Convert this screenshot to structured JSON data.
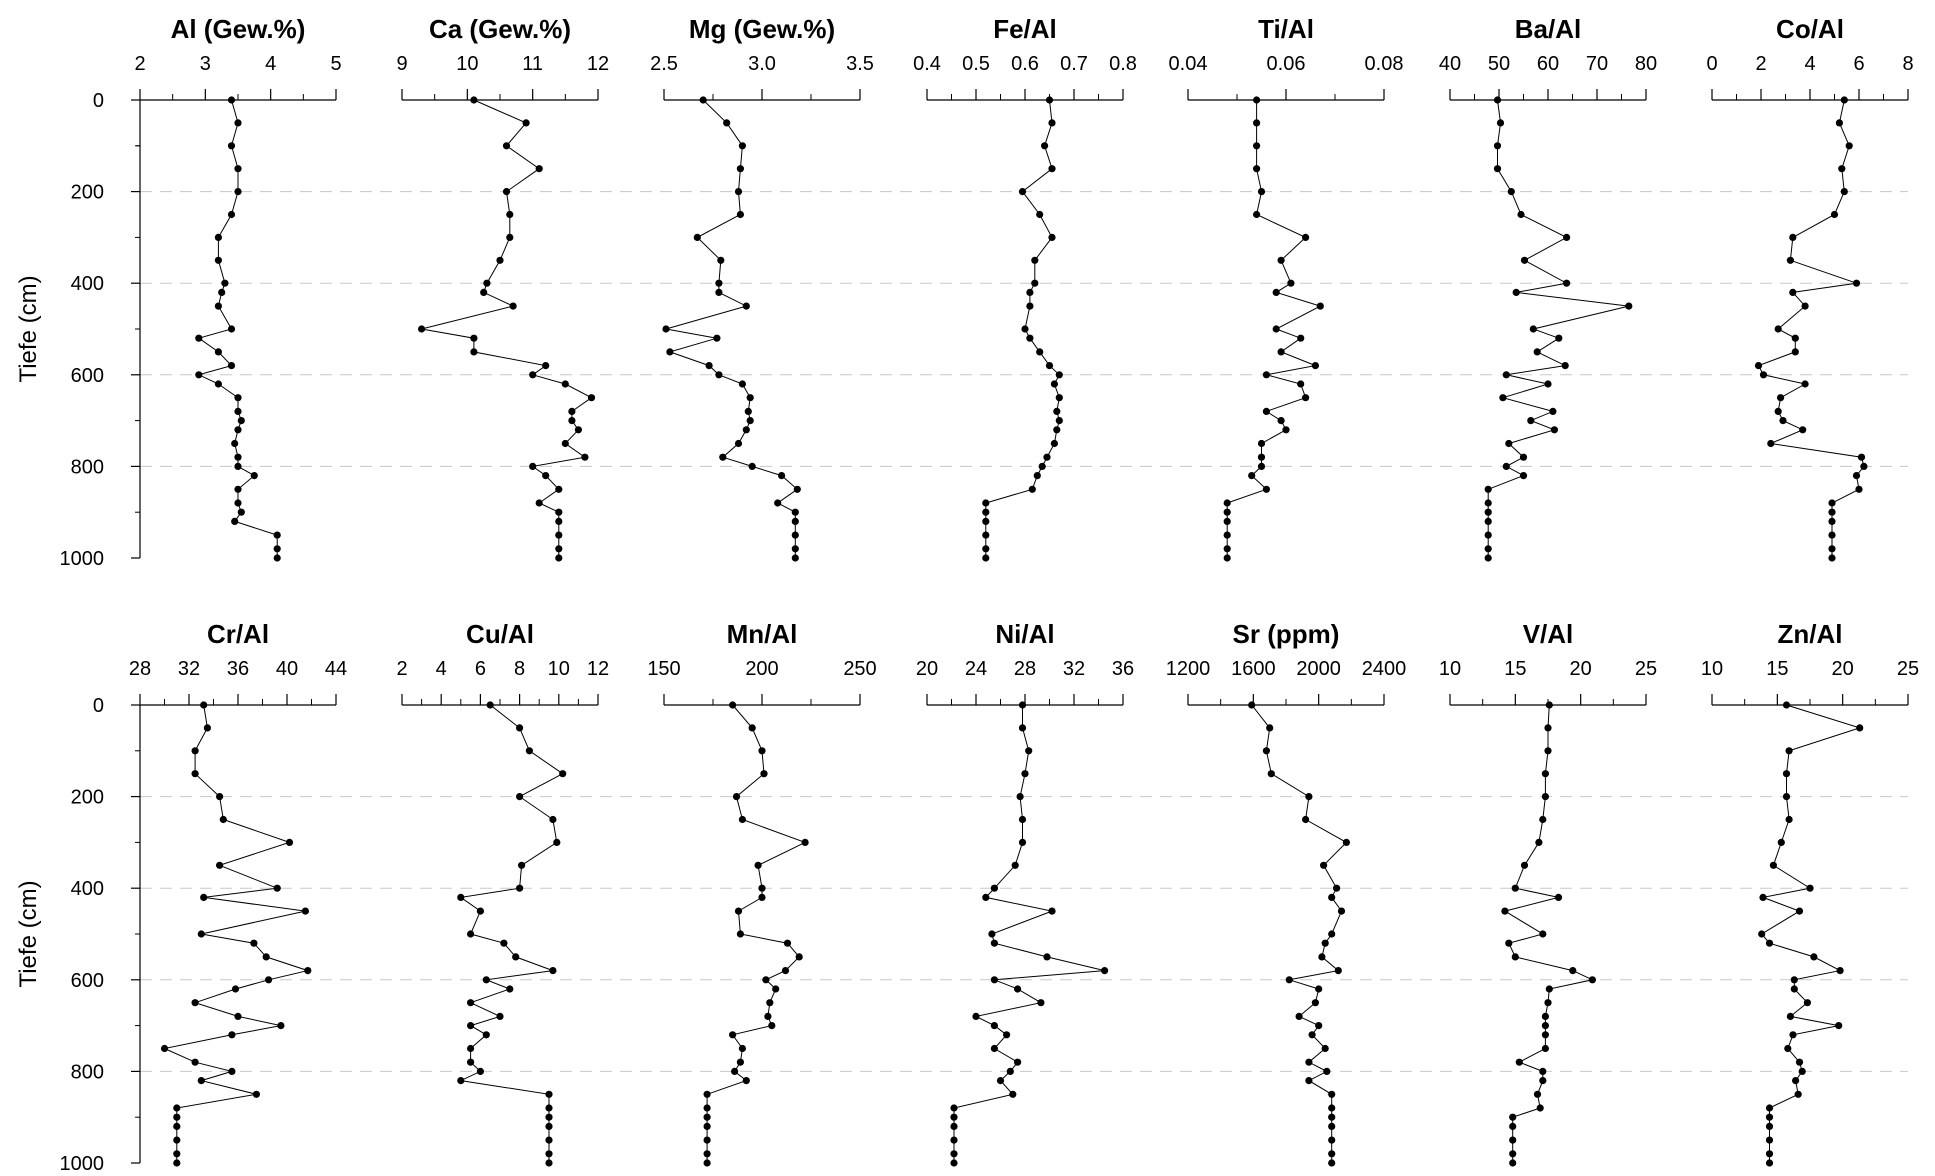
{
  "chart_data": [
    {
      "type": "line",
      "title": "Al (Gew.%)",
      "xlim": [
        2,
        5
      ],
      "xticks": [
        "2",
        "3",
        "4",
        "5"
      ],
      "ylim": [
        0,
        1000
      ],
      "y": [
        0,
        50,
        100,
        150,
        200,
        250,
        300,
        350,
        400,
        420,
        450,
        500,
        520,
        550,
        580,
        600,
        620,
        650,
        680,
        700,
        720,
        750,
        780,
        800,
        820,
        850,
        880,
        900,
        920,
        950,
        980,
        1000
      ],
      "values": [
        3.4,
        3.5,
        3.4,
        3.5,
        3.5,
        3.4,
        3.2,
        3.2,
        3.3,
        3.25,
        3.2,
        3.4,
        2.9,
        3.2,
        3.4,
        2.9,
        3.2,
        3.5,
        3.5,
        3.55,
        3.5,
        3.45,
        3.5,
        3.5,
        3.75,
        3.5,
        3.5,
        3.55,
        3.45,
        4.1,
        4.1,
        4.1
      ]
    },
    {
      "type": "line",
      "title": "Ca (Gew.%)",
      "xlim": [
        9,
        12
      ],
      "xticks": [
        "9",
        "10",
        "11",
        "12"
      ],
      "ylim": [
        0,
        1000
      ],
      "y": [
        0,
        50,
        100,
        150,
        200,
        250,
        300,
        350,
        400,
        420,
        450,
        500,
        520,
        550,
        580,
        600,
        620,
        650,
        680,
        700,
        720,
        750,
        780,
        800,
        820,
        850,
        880,
        900,
        920,
        950,
        980,
        1000
      ],
      "values": [
        10.1,
        10.9,
        10.6,
        11.1,
        10.6,
        10.65,
        10.65,
        10.5,
        10.3,
        10.25,
        10.7,
        9.3,
        10.1,
        10.1,
        11.2,
        11.0,
        11.5,
        11.9,
        11.6,
        11.6,
        11.7,
        11.5,
        11.8,
        11.0,
        11.2,
        11.4,
        11.1,
        11.4,
        11.4,
        11.4,
        11.4,
        11.4
      ]
    },
    {
      "type": "line",
      "title": "Mg (Gew.%)",
      "xlim": [
        2.5,
        3.5
      ],
      "xticks": [
        "2.5",
        "3.0",
        "3.5"
      ],
      "ylim": [
        0,
        1000
      ],
      "y": [
        0,
        50,
        100,
        150,
        200,
        250,
        300,
        350,
        400,
        420,
        450,
        500,
        520,
        550,
        580,
        600,
        620,
        650,
        680,
        700,
        720,
        750,
        780,
        800,
        820,
        850,
        880,
        900,
        920,
        950,
        980,
        1000
      ],
      "values": [
        2.7,
        2.82,
        2.9,
        2.89,
        2.88,
        2.89,
        2.67,
        2.79,
        2.78,
        2.78,
        2.92,
        2.51,
        2.77,
        2.53,
        2.73,
        2.78,
        2.9,
        2.94,
        2.93,
        2.94,
        2.92,
        2.88,
        2.8,
        2.95,
        3.1,
        3.18,
        3.08,
        3.17,
        3.17,
        3.17,
        3.17,
        3.17
      ]
    },
    {
      "type": "line",
      "title": "Fe/Al",
      "xlim": [
        0.4,
        0.8
      ],
      "xticks": [
        "0.4",
        "0.5",
        "0.6",
        "0.7",
        "0.8"
      ],
      "ylim": [
        0,
        1000
      ],
      "y": [
        0,
        50,
        100,
        150,
        200,
        250,
        300,
        350,
        400,
        420,
        450,
        500,
        520,
        550,
        580,
        600,
        620,
        650,
        680,
        700,
        720,
        750,
        780,
        800,
        820,
        850,
        880,
        900,
        920,
        950,
        980,
        1000
      ],
      "values": [
        0.65,
        0.655,
        0.64,
        0.655,
        0.595,
        0.63,
        0.655,
        0.62,
        0.62,
        0.61,
        0.61,
        0.6,
        0.61,
        0.63,
        0.65,
        0.67,
        0.66,
        0.67,
        0.665,
        0.67,
        0.665,
        0.66,
        0.645,
        0.635,
        0.625,
        0.615,
        0.52,
        0.52,
        0.52,
        0.52,
        0.52,
        0.52
      ]
    },
    {
      "type": "line",
      "title": "Ti/Al",
      "xlim": [
        0.04,
        0.08
      ],
      "xticks": [
        "0.04",
        "0.06",
        "0.08"
      ],
      "ylim": [
        0,
        1000
      ],
      "y": [
        0,
        50,
        100,
        150,
        200,
        250,
        300,
        350,
        400,
        420,
        450,
        500,
        520,
        550,
        580,
        600,
        620,
        650,
        680,
        700,
        720,
        750,
        780,
        800,
        820,
        850,
        880,
        900,
        920,
        950,
        980,
        1000
      ],
      "values": [
        0.054,
        0.054,
        0.054,
        0.054,
        0.055,
        0.054,
        0.064,
        0.059,
        0.061,
        0.058,
        0.067,
        0.058,
        0.063,
        0.059,
        0.066,
        0.056,
        0.063,
        0.064,
        0.056,
        0.059,
        0.06,
        0.055,
        0.055,
        0.055,
        0.053,
        0.056,
        0.048,
        0.048,
        0.048,
        0.048,
        0.048,
        0.048
      ]
    },
    {
      "type": "line",
      "title": "Ba/Al",
      "xlim": [
        40,
        80
      ],
      "xticks": [
        "40",
        "50",
        "60",
        "70",
        "80"
      ],
      "ylim": [
        0,
        1000
      ],
      "y": [
        0,
        50,
        100,
        150,
        200,
        250,
        300,
        350,
        400,
        420,
        450,
        500,
        520,
        550,
        580,
        600,
        620,
        650,
        680,
        700,
        720,
        750,
        780,
        800,
        820,
        850,
        880,
        900,
        920,
        950,
        980,
        1000
      ],
      "values": [
        49.7,
        50.3,
        49.7,
        49.7,
        52.5,
        54.5,
        63.8,
        55.2,
        63.8,
        53.5,
        76.5,
        57,
        62.2,
        57.8,
        63.5,
        51.5,
        60,
        50.8,
        61,
        56.5,
        61.3,
        52,
        55,
        51.5,
        55,
        47.8,
        47.8,
        47.8,
        47.8,
        47.8,
        47.8,
        47.8
      ]
    },
    {
      "type": "line",
      "title": "Co/Al",
      "xlim": [
        0,
        8
      ],
      "xticks": [
        "0",
        "2",
        "4",
        "6",
        "8"
      ],
      "ylim": [
        0,
        1000
      ],
      "y": [
        0,
        50,
        100,
        150,
        200,
        250,
        300,
        350,
        400,
        420,
        450,
        500,
        520,
        550,
        580,
        600,
        620,
        650,
        680,
        700,
        720,
        750,
        780,
        800,
        820,
        850,
        880,
        900,
        920,
        950,
        980,
        1000
      ],
      "values": [
        5.4,
        5.2,
        5.6,
        5.3,
        5.4,
        5.0,
        3.3,
        3.2,
        5.9,
        3.3,
        3.8,
        2.7,
        3.4,
        3.4,
        1.9,
        2.1,
        3.8,
        2.8,
        2.7,
        2.9,
        3.7,
        2.4,
        6.1,
        6.2,
        5.9,
        6.0,
        4.9,
        4.9,
        4.9,
        4.9,
        4.9,
        4.9
      ]
    },
    {
      "type": "line",
      "title": "Cr/Al",
      "xlim": [
        28,
        44
      ],
      "xticks": [
        "28",
        "32",
        "36",
        "40",
        "44"
      ],
      "ylim": [
        0,
        1000
      ],
      "y": [
        0,
        50,
        100,
        150,
        200,
        250,
        300,
        350,
        400,
        420,
        450,
        500,
        520,
        550,
        580,
        600,
        620,
        650,
        680,
        700,
        720,
        750,
        780,
        800,
        820,
        850,
        880,
        900,
        920,
        950,
        980,
        1000
      ],
      "values": [
        33.2,
        33.5,
        32.5,
        32.5,
        34.5,
        34.8,
        40.2,
        34.5,
        39.2,
        33.2,
        41.5,
        33.0,
        37.3,
        38.3,
        41.7,
        38.5,
        35.8,
        32.5,
        36.0,
        39.5,
        35.5,
        30.0,
        32.5,
        35.5,
        33.0,
        37.5,
        31.0,
        31.0,
        31.0,
        31.0,
        31.0,
        31.0
      ]
    },
    {
      "type": "line",
      "title": "Cu/Al",
      "xlim": [
        2,
        12
      ],
      "xticks": [
        "2",
        "4",
        "6",
        "8",
        "10",
        "12"
      ],
      "ylim": [
        0,
        1000
      ],
      "y": [
        0,
        50,
        100,
        150,
        200,
        250,
        300,
        350,
        400,
        420,
        450,
        500,
        520,
        550,
        580,
        600,
        620,
        650,
        680,
        700,
        720,
        750,
        780,
        800,
        820,
        850,
        880,
        900,
        920,
        950,
        980,
        1000
      ],
      "values": [
        6.5,
        8.0,
        8.5,
        10.2,
        8.0,
        9.7,
        9.9,
        8.1,
        8.0,
        5.0,
        6.0,
        5.5,
        7.2,
        7.8,
        9.7,
        6.3,
        7.5,
        5.5,
        7.0,
        5.5,
        6.3,
        5.5,
        5.5,
        6.0,
        5.0,
        9.5,
        9.5,
        9.5,
        9.5,
        9.5,
        9.5,
        9.5
      ]
    },
    {
      "type": "line",
      "title": "Mn/Al",
      "xlim": [
        150,
        250
      ],
      "xticks": [
        "150",
        "200",
        "250"
      ],
      "ylim": [
        0,
        1000
      ],
      "y": [
        0,
        50,
        100,
        150,
        200,
        250,
        300,
        350,
        400,
        420,
        450,
        500,
        520,
        550,
        580,
        600,
        620,
        650,
        680,
        700,
        720,
        750,
        780,
        800,
        820,
        850,
        880,
        900,
        920,
        950,
        980,
        1000
      ],
      "values": [
        185,
        195,
        200,
        201,
        187,
        190,
        222,
        198,
        200,
        200,
        188,
        189,
        213,
        219,
        212,
        202,
        207,
        204,
        203,
        205,
        185,
        190,
        189,
        186,
        192,
        172,
        172,
        172,
        172,
        172,
        172,
        172
      ]
    },
    {
      "type": "line",
      "title": "Ni/Al",
      "xlim": [
        20,
        36
      ],
      "xticks": [
        "20",
        "24",
        "28",
        "32",
        "36"
      ],
      "ylim": [
        0,
        1000
      ],
      "y": [
        0,
        50,
        100,
        150,
        200,
        250,
        300,
        350,
        400,
        420,
        450,
        500,
        520,
        550,
        580,
        600,
        620,
        650,
        680,
        700,
        720,
        750,
        780,
        800,
        820,
        850,
        880,
        900,
        920,
        950,
        980,
        1000
      ],
      "values": [
        27.8,
        27.8,
        28.3,
        28.0,
        27.6,
        27.8,
        27.8,
        27.2,
        25.5,
        24.8,
        30.2,
        25.3,
        25.5,
        29.8,
        34.5,
        25.5,
        27.4,
        29.3,
        24.0,
        25.5,
        26.5,
        25.5,
        27.4,
        26.8,
        26.0,
        27.0,
        22.2,
        22.2,
        22.2,
        22.2,
        22.2,
        22.2
      ]
    },
    {
      "type": "line",
      "title": "Sr (ppm)",
      "xlim": [
        1200,
        2400
      ],
      "xticks": [
        "1200",
        "1600",
        "2000",
        "2400"
      ],
      "ylim": [
        0,
        1000
      ],
      "y": [
        0,
        50,
        100,
        150,
        200,
        250,
        300,
        350,
        400,
        420,
        450,
        500,
        520,
        550,
        580,
        600,
        620,
        650,
        680,
        700,
        720,
        750,
        780,
        800,
        820,
        850,
        880,
        900,
        920,
        950,
        980,
        1000
      ],
      "values": [
        1590,
        1700,
        1680,
        1710,
        1940,
        1920,
        2170,
        2030,
        2110,
        2080,
        2140,
        2080,
        2040,
        2020,
        2120,
        1820,
        2000,
        1980,
        1880,
        2000,
        1960,
        2040,
        1940,
        2050,
        1940,
        2080,
        2080,
        2080,
        2080,
        2080,
        2080,
        2080
      ]
    },
    {
      "type": "line",
      "title": "V/Al",
      "xlim": [
        10,
        25
      ],
      "xticks": [
        "10",
        "15",
        "20",
        "25"
      ],
      "ylim": [
        0,
        1000
      ],
      "y": [
        0,
        50,
        100,
        150,
        200,
        250,
        300,
        350,
        400,
        420,
        450,
        500,
        520,
        550,
        580,
        600,
        620,
        650,
        680,
        700,
        720,
        750,
        780,
        800,
        820,
        850,
        880,
        900,
        920,
        950,
        980,
        1000
      ],
      "values": [
        17.6,
        17.5,
        17.5,
        17.3,
        17.3,
        17.1,
        16.8,
        15.7,
        15.0,
        18.3,
        14.2,
        17.1,
        14.5,
        15.0,
        19.4,
        20.9,
        17.6,
        17.5,
        17.3,
        17.3,
        17.3,
        17.3,
        15.3,
        17.1,
        17.1,
        16.7,
        16.9,
        14.8,
        14.8,
        14.8,
        14.8,
        14.8
      ]
    },
    {
      "type": "line",
      "title": "Zn/Al",
      "xlim": [
        10,
        25
      ],
      "xticks": [
        "10",
        "15",
        "20",
        "25"
      ],
      "ylim": [
        0,
        1000
      ],
      "y": [
        0,
        50,
        100,
        150,
        200,
        250,
        300,
        350,
        400,
        420,
        450,
        500,
        520,
        550,
        580,
        600,
        620,
        650,
        680,
        700,
        720,
        750,
        780,
        800,
        820,
        850,
        880,
        900,
        920,
        950,
        980,
        1000
      ],
      "values": [
        15.7,
        21.3,
        15.9,
        15.7,
        15.7,
        15.9,
        15.3,
        14.7,
        17.5,
        13.9,
        16.7,
        13.8,
        14.4,
        17.8,
        19.8,
        16.3,
        16.3,
        17.3,
        16.0,
        19.7,
        16.2,
        15.8,
        16.7,
        16.9,
        16.4,
        16.6,
        14.4,
        14.4,
        14.4,
        14.4,
        14.4,
        14.4
      ]
    }
  ],
  "y_axis": {
    "label": "Tiefe (cm)",
    "ticks": [
      "0",
      "200",
      "400",
      "600",
      "800",
      "1000"
    ]
  }
}
